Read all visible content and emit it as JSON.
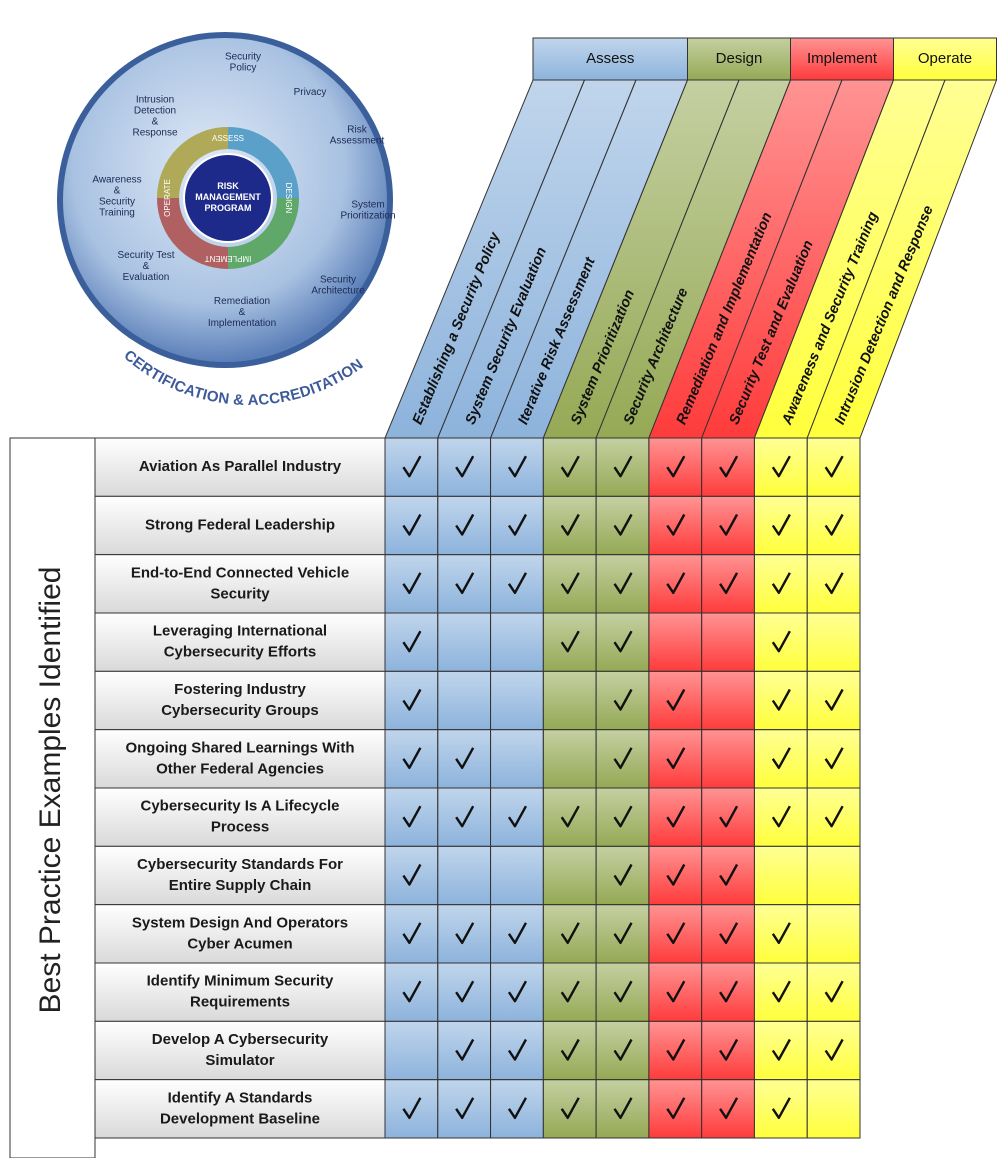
{
  "diagram": {
    "center": [
      "RISK",
      "MANAGEMENT",
      "PROGRAM"
    ],
    "inner": [
      "ASSESS",
      "DESIGN",
      "IMPLEMENT",
      "OPERATE"
    ],
    "outer": [
      [
        "Security",
        "Policy"
      ],
      [
        "Privacy"
      ],
      [
        "Risk",
        "Assessment"
      ],
      [
        "System",
        "Prioritization"
      ],
      [
        "Security",
        "Architecture"
      ],
      [
        "Remediation",
        "&",
        "Implementation"
      ],
      [
        "Security Test",
        "&",
        "Evaluation"
      ],
      [
        "Awareness",
        "&",
        "Security",
        "Training"
      ],
      [
        "Intrusion",
        "Detection",
        "&",
        "Response"
      ]
    ],
    "arc_title": "CERTIFICATION & ACCREDITATION"
  },
  "table": {
    "side_label": "Best Practice Examples Identified",
    "phases": [
      {
        "name": "Assess",
        "color": "#8db3dc",
        "columns": [
          "Establishing a Security Policy",
          "System Security Evaluation",
          "Iterative Risk Assessment"
        ]
      },
      {
        "name": "Design",
        "color": "#95a955",
        "columns": [
          "System Prioritization",
          "Security Architecture"
        ]
      },
      {
        "name": "Implement",
        "color": "#ff3b3b",
        "columns": [
          "Remediation and Implementation",
          "Security Test and Evaluation"
        ]
      },
      {
        "name": "Operate",
        "color": "#ffff3c",
        "columns": [
          "Awareness and Security Training",
          "Intrusion Detection and Response"
        ]
      }
    ],
    "rows": [
      {
        "label": [
          "Aviation As Parallel Industry"
        ],
        "checks": [
          true,
          true,
          true,
          true,
          true,
          true,
          true,
          true,
          true
        ]
      },
      {
        "label": [
          "Strong Federal Leadership"
        ],
        "checks": [
          true,
          true,
          true,
          true,
          true,
          true,
          true,
          true,
          true
        ]
      },
      {
        "label": [
          "End-to-End Connected Vehicle",
          "Security"
        ],
        "checks": [
          true,
          true,
          true,
          true,
          true,
          true,
          true,
          true,
          true
        ]
      },
      {
        "label": [
          "Leveraging International",
          "Cybersecurity Efforts"
        ],
        "checks": [
          true,
          false,
          false,
          true,
          true,
          false,
          false,
          true,
          false
        ]
      },
      {
        "label": [
          "Fostering Industry",
          "Cybersecurity Groups"
        ],
        "checks": [
          true,
          false,
          false,
          false,
          true,
          true,
          false,
          true,
          true
        ]
      },
      {
        "label": [
          "Ongoing Shared Learnings With",
          "Other Federal Agencies"
        ],
        "checks": [
          true,
          true,
          false,
          false,
          true,
          true,
          false,
          true,
          true
        ]
      },
      {
        "label": [
          "Cybersecurity Is A Lifecycle",
          "Process"
        ],
        "checks": [
          true,
          true,
          true,
          true,
          true,
          true,
          true,
          true,
          true
        ]
      },
      {
        "label": [
          "Cybersecurity Standards For",
          "Entire Supply Chain"
        ],
        "checks": [
          true,
          false,
          false,
          false,
          true,
          true,
          true,
          false,
          false
        ]
      },
      {
        "label": [
          "System Design And Operators",
          "Cyber Acumen"
        ],
        "checks": [
          true,
          true,
          true,
          true,
          true,
          true,
          true,
          true,
          false
        ]
      },
      {
        "label": [
          "Identify Minimum Security",
          "Requirements"
        ],
        "checks": [
          true,
          true,
          true,
          true,
          true,
          true,
          true,
          true,
          true
        ]
      },
      {
        "label": [
          "Develop A Cybersecurity",
          "Simulator"
        ],
        "checks": [
          false,
          true,
          true,
          true,
          true,
          true,
          true,
          true,
          true
        ]
      },
      {
        "label": [
          "Identify A Standards",
          "Development Baseline"
        ],
        "checks": [
          true,
          true,
          true,
          true,
          true,
          true,
          true,
          true,
          false
        ]
      }
    ]
  }
}
